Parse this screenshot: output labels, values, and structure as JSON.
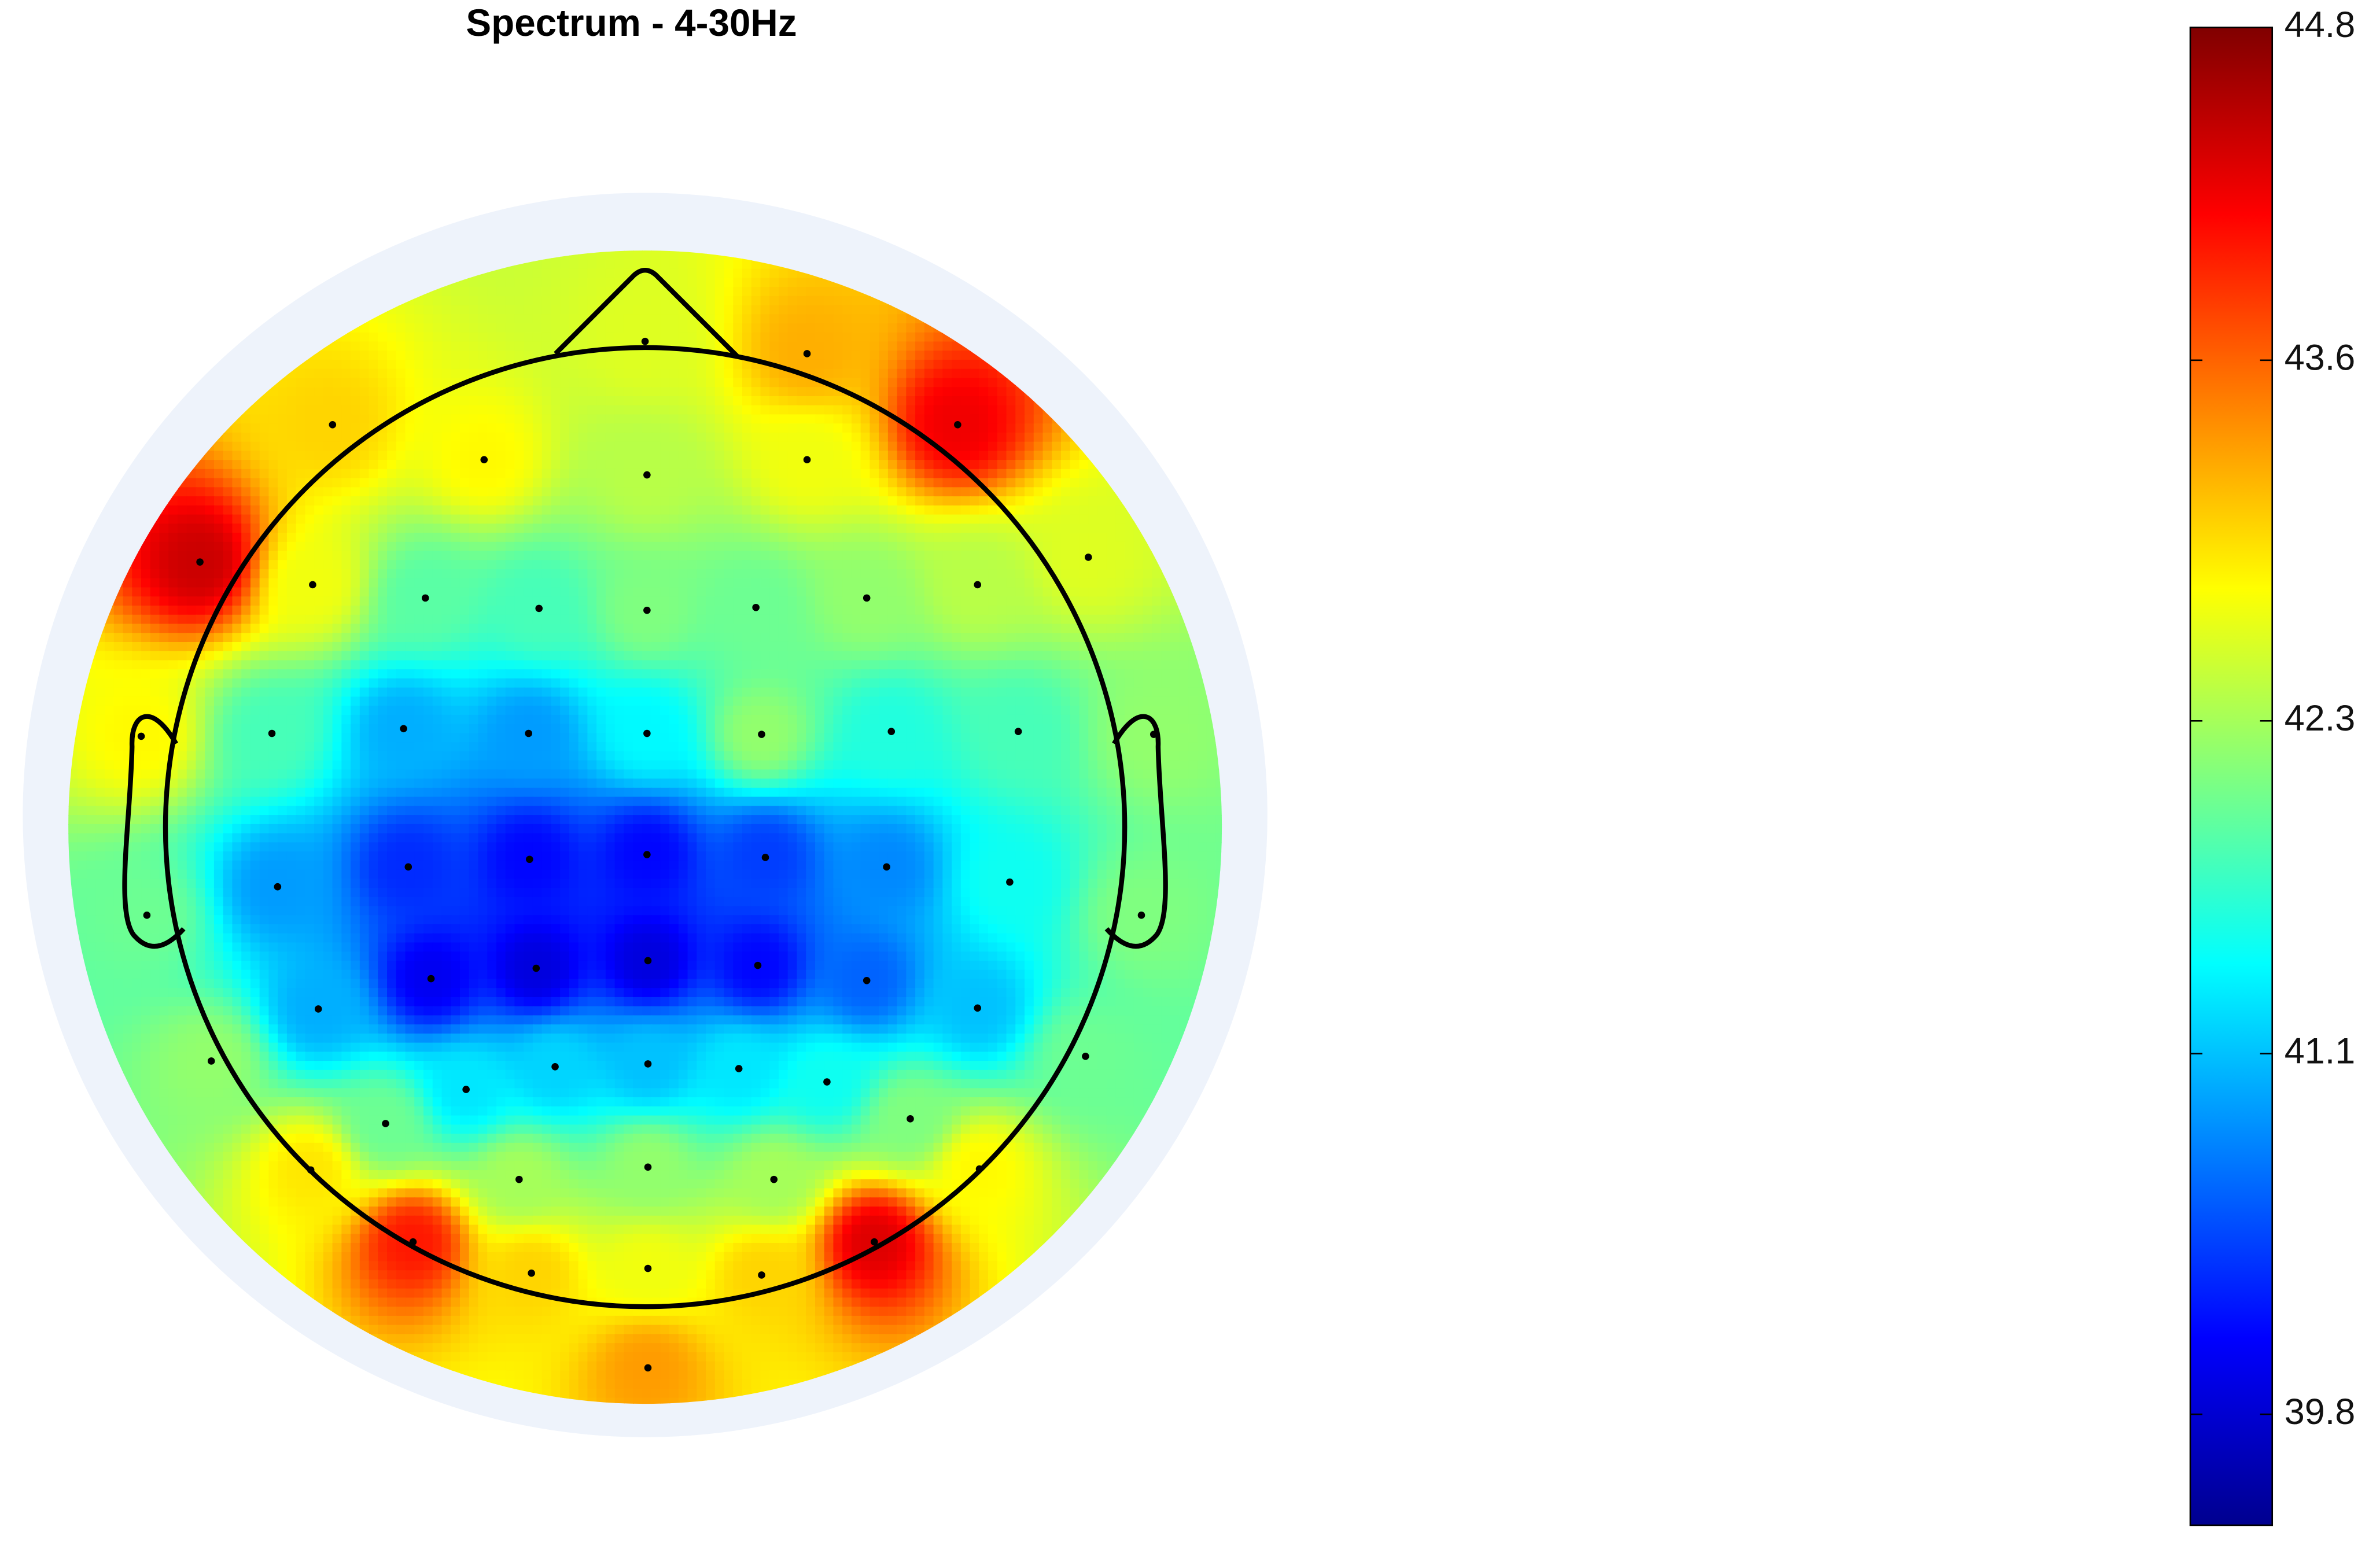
{
  "chart_data": {
    "type": "topoplot",
    "title": "Spectrum - 4-30Hz",
    "clim": [
      39.4,
      44.8
    ],
    "colorbar_ticks": [
      39.8,
      41.1,
      42.3,
      43.6,
      44.8
    ],
    "colormap": "jet",
    "electrodes": [
      {
        "x": 0,
        "y": 0.513,
        "value": 42.6
      },
      {
        "x": 0.171,
        "y": 0.5,
        "value": 43.2
      },
      {
        "x": -0.33,
        "y": 0.425,
        "value": 43.0
      },
      {
        "x": 0.33,
        "y": 0.425,
        "value": 44.2
      },
      {
        "x": -0.17,
        "y": 0.388,
        "value": 42.8
      },
      {
        "x": 0.002,
        "y": 0.372,
        "value": 42.4
      },
      {
        "x": 0.171,
        "y": 0.388,
        "value": 42.7
      },
      {
        "x": -0.47,
        "y": 0.28,
        "value": 44.4
      },
      {
        "x": 0.468,
        "y": 0.285,
        "value": 42.6
      },
      {
        "x": -0.351,
        "y": 0.256,
        "value": 42.7
      },
      {
        "x": 0.351,
        "y": 0.256,
        "value": 42.4
      },
      {
        "x": -0.232,
        "y": 0.242,
        "value": 41.9
      },
      {
        "x": -0.112,
        "y": 0.231,
        "value": 41.8
      },
      {
        "x": 0.002,
        "y": 0.229,
        "value": 42.1
      },
      {
        "x": 0.117,
        "y": 0.232,
        "value": 42.0
      },
      {
        "x": 0.234,
        "y": 0.242,
        "value": 42.2
      },
      {
        "x": -0.532,
        "y": 0.096,
        "value": 42.8
      },
      {
        "x": -0.394,
        "y": 0.099,
        "value": 41.8
      },
      {
        "x": -0.255,
        "y": 0.104,
        "value": 41.0
      },
      {
        "x": -0.123,
        "y": 0.099,
        "value": 40.9
      },
      {
        "x": 0.002,
        "y": 0.099,
        "value": 41.4
      },
      {
        "x": 0.123,
        "y": 0.098,
        "value": 42.2
      },
      {
        "x": 0.26,
        "y": 0.101,
        "value": 41.6
      },
      {
        "x": 0.394,
        "y": 0.101,
        "value": 41.8
      },
      {
        "x": 0.537,
        "y": 0.098,
        "value": 42.2
      },
      {
        "x": -0.388,
        "y": -0.063,
        "value": 40.9
      },
      {
        "x": -0.25,
        "y": -0.042,
        "value": 40.3
      },
      {
        "x": -0.122,
        "y": -0.034,
        "value": 40.1
      },
      {
        "x": 0.002,
        "y": -0.029,
        "value": 40.1
      },
      {
        "x": 0.127,
        "y": -0.032,
        "value": 40.4
      },
      {
        "x": 0.255,
        "y": -0.042,
        "value": 40.8
      },
      {
        "x": 0.385,
        "y": -0.058,
        "value": 41.5
      },
      {
        "x": -0.526,
        "y": -0.093,
        "value": 42.0
      },
      {
        "x": 0.524,
        "y": -0.093,
        "value": 42.1
      },
      {
        "x": -0.226,
        "y": -0.16,
        "value": 40.0
      },
      {
        "x": -0.115,
        "y": -0.149,
        "value": 39.9
      },
      {
        "x": 0.003,
        "y": -0.141,
        "value": 39.9
      },
      {
        "x": 0.119,
        "y": -0.146,
        "value": 40.1
      },
      {
        "x": 0.234,
        "y": -0.162,
        "value": 40.6
      },
      {
        "x": -0.345,
        "y": -0.192,
        "value": 41.0
      },
      {
        "x": 0.351,
        "y": -0.191,
        "value": 41.1
      },
      {
        "x": -0.458,
        "y": -0.247,
        "value": 42.2
      },
      {
        "x": -0.189,
        "y": -0.277,
        "value": 41.3
      },
      {
        "x": -0.095,
        "y": -0.253,
        "value": 41.2
      },
      {
        "x": 0.003,
        "y": -0.25,
        "value": 41.1
      },
      {
        "x": 0.099,
        "y": -0.255,
        "value": 41.3
      },
      {
        "x": 0.192,
        "y": -0.269,
        "value": 41.5
      },
      {
        "x": 0.465,
        "y": -0.242,
        "value": 42.0
      },
      {
        "x": -0.274,
        "y": -0.313,
        "value": 42.0
      },
      {
        "x": 0.28,
        "y": -0.308,
        "value": 42.1
      },
      {
        "x": -0.353,
        "y": -0.362,
        "value": 42.9
      },
      {
        "x": -0.133,
        "y": -0.372,
        "value": 42.3
      },
      {
        "x": 0.003,
        "y": -0.359,
        "value": 42.2
      },
      {
        "x": 0.136,
        "y": -0.372,
        "value": 42.3
      },
      {
        "x": 0.353,
        "y": -0.361,
        "value": 42.8
      },
      {
        "x": -0.245,
        "y": -0.438,
        "value": 44.0
      },
      {
        "x": -0.12,
        "y": -0.471,
        "value": 43.0
      },
      {
        "x": 0.003,
        "y": -0.466,
        "value": 42.7
      },
      {
        "x": 0.123,
        "y": -0.473,
        "value": 43.0
      },
      {
        "x": 0.242,
        "y": -0.438,
        "value": 44.3
      },
      {
        "x": 0.003,
        "y": -0.571,
        "value": 43.3
      }
    ]
  }
}
